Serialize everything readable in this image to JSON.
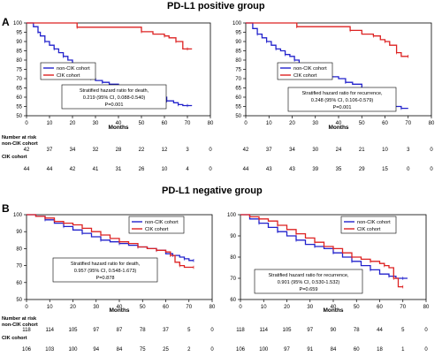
{
  "groups": [
    {
      "title": "PD-L1 positive group",
      "letter": "A"
    },
    {
      "title": "PD-L1 negative group",
      "letter": "B"
    }
  ],
  "risk_header": {
    "line1": "Number at risk",
    "line2": "non-CIK cohort",
    "cik": "CIK cohort"
  },
  "colors": {
    "non_cik": "#2222cc",
    "cik": "#dd2222"
  },
  "chart_data": [
    {
      "type": "line",
      "panel": "A-left",
      "xlabel": "Months",
      "xlim": [
        0,
        80
      ],
      "ylim": [
        50,
        100
      ],
      "xticks": [
        0,
        10,
        20,
        30,
        40,
        50,
        60,
        70,
        80
      ],
      "yticks": [
        50,
        55,
        60,
        65,
        70,
        75,
        80,
        85,
        90,
        95,
        100
      ],
      "legend": [
        "non-CIK cohort",
        "CIK cohort"
      ],
      "annotation": [
        "Stratified hazard ratio for death,",
        "0.219 (95% CI, 0.088-0.540)",
        "P=0.001"
      ],
      "series": [
        {
          "name": "non-CIK cohort",
          "color": "#2222cc",
          "x": [
            0,
            3,
            5,
            6,
            8,
            10,
            12,
            14,
            16,
            18,
            20,
            22,
            24,
            26,
            28,
            30,
            33,
            36,
            40,
            44,
            48,
            52,
            56,
            59,
            61,
            64,
            66,
            68,
            70,
            72
          ],
          "y": [
            100,
            98,
            95,
            93,
            90,
            88,
            86,
            84,
            82,
            80,
            78,
            76,
            74,
            72,
            70,
            69,
            68,
            67,
            66,
            65,
            64,
            62,
            61,
            60,
            58,
            57,
            56,
            55.5,
            55.5,
            55.5
          ]
        },
        {
          "name": "CIK cohort",
          "color": "#dd2222",
          "x": [
            0,
            20,
            22,
            45,
            50,
            55,
            60,
            62,
            65,
            68,
            70,
            72
          ],
          "y": [
            100,
            100,
            97.7,
            97.7,
            95.3,
            94,
            93,
            92,
            90,
            86,
            86,
            86
          ]
        }
      ],
      "risk_x": [
        0,
        10,
        20,
        30,
        40,
        50,
        60,
        70,
        80
      ],
      "risk_non_cik": [
        "42",
        "37",
        "34",
        "32",
        "28",
        "22",
        "12",
        "3",
        "0"
      ],
      "risk_cik": [
        "44",
        "44",
        "42",
        "41",
        "31",
        "26",
        "10",
        "4",
        "0"
      ]
    },
    {
      "type": "line",
      "panel": "A-right",
      "xlabel": "Months",
      "xlim": [
        0,
        80
      ],
      "ylim": [
        50,
        100
      ],
      "xticks": [
        0,
        10,
        20,
        30,
        40,
        50,
        60,
        70,
        80
      ],
      "yticks": [
        50,
        55,
        60,
        65,
        70,
        75,
        80,
        85,
        90,
        95,
        100
      ],
      "legend": [
        "non-CIK cohort",
        "CIK cohort"
      ],
      "annotation": [
        "Stratified hazard ratio for recurrence,",
        "0.248 (95% CI, 0.106-0.579)",
        "P=0.001"
      ],
      "series": [
        {
          "name": "non-CIK cohort",
          "color": "#2222cc",
          "x": [
            0,
            3,
            5,
            7,
            9,
            11,
            13,
            15,
            17,
            19,
            21,
            23,
            25,
            28,
            31,
            34,
            37,
            40,
            43,
            46,
            50,
            53,
            56,
            58,
            61,
            64,
            67,
            70
          ],
          "y": [
            100,
            97,
            94,
            92,
            90,
            88,
            86,
            85,
            83,
            82,
            80,
            78,
            77,
            75,
            74,
            72,
            71,
            70,
            68,
            67,
            65,
            64,
            62,
            61,
            58,
            55,
            54,
            54
          ]
        },
        {
          "name": "CIK cohort",
          "color": "#dd2222",
          "x": [
            0,
            20,
            22,
            40,
            45,
            50,
            55,
            58,
            60,
            62,
            65,
            67,
            70
          ],
          "y": [
            100,
            100,
            98,
            98,
            96,
            94,
            93,
            91,
            90,
            88,
            84,
            82,
            82
          ]
        }
      ],
      "risk_x": [
        0,
        10,
        20,
        30,
        40,
        50,
        60,
        70,
        80
      ],
      "risk_non_cik": [
        "42",
        "37",
        "34",
        "30",
        "24",
        "21",
        "10",
        "3",
        "0"
      ],
      "risk_cik": [
        "44",
        "43",
        "43",
        "39",
        "35",
        "29",
        "15",
        "0",
        "0"
      ]
    },
    {
      "type": "line",
      "panel": "B-left",
      "xlabel": "Months",
      "xlim": [
        0,
        80
      ],
      "ylim": [
        50,
        100
      ],
      "xticks": [
        0,
        10,
        20,
        30,
        40,
        50,
        60,
        70,
        80
      ],
      "yticks": [
        50,
        60,
        70,
        80,
        90,
        100
      ],
      "legend": [
        "non-CIK cohort",
        "CIK cohort"
      ],
      "annotation": [
        "Stratified hazard ratio for death,",
        "0.957 (95% CI, 0.548-1.673)",
        "P=0.878"
      ],
      "series": [
        {
          "name": "non-CIK cohort",
          "color": "#2222cc",
          "x": [
            0,
            4,
            8,
            12,
            16,
            20,
            24,
            28,
            32,
            36,
            40,
            44,
            48,
            52,
            56,
            60,
            63,
            66,
            68,
            70,
            72
          ],
          "y": [
            100,
            99,
            97,
            95,
            93,
            91,
            89,
            87,
            85,
            84,
            83,
            82,
            81,
            80,
            79,
            77,
            76,
            75,
            74,
            73,
            73
          ]
        },
        {
          "name": "CIK cohort",
          "color": "#dd2222",
          "x": [
            0,
            4,
            8,
            12,
            16,
            20,
            24,
            28,
            32,
            36,
            40,
            44,
            48,
            52,
            56,
            60,
            62,
            64,
            66,
            68,
            72
          ],
          "y": [
            100,
            99,
            98,
            96,
            95,
            94,
            92,
            90,
            88,
            86,
            84,
            83,
            81,
            80,
            79,
            78,
            76,
            72,
            70,
            69,
            69
          ]
        }
      ],
      "risk_x": [
        0,
        10,
        20,
        30,
        40,
        50,
        60,
        70,
        80
      ],
      "risk_non_cik": [
        "118",
        "114",
        "105",
        "97",
        "87",
        "78",
        "37",
        "5",
        "0"
      ],
      "risk_cik": [
        "106",
        "103",
        "100",
        "94",
        "84",
        "75",
        "25",
        "2",
        "0"
      ]
    },
    {
      "type": "line",
      "panel": "B-right",
      "xlabel": "Months",
      "xlim": [
        0,
        80
      ],
      "ylim": [
        60,
        100
      ],
      "xticks": [
        0,
        10,
        20,
        30,
        40,
        50,
        60,
        70,
        80
      ],
      "yticks": [
        60,
        70,
        80,
        90,
        100
      ],
      "legend": [
        "non-CIK cohort",
        "CIK cohort"
      ],
      "annotation": [
        "Stratified hazard ratio for recurrence,",
        "0.901 (95% CI, 0.530-1.532)",
        "P=0.659"
      ],
      "series": [
        {
          "name": "non-CIK cohort",
          "color": "#2222cc",
          "x": [
            0,
            4,
            8,
            12,
            16,
            20,
            24,
            28,
            32,
            36,
            40,
            44,
            48,
            52,
            56,
            60,
            64,
            67,
            70,
            72
          ],
          "y": [
            100,
            98,
            96,
            94,
            92,
            90,
            88,
            86,
            85,
            84,
            82,
            80,
            78,
            76,
            74,
            72,
            71,
            70,
            70,
            70
          ]
        },
        {
          "name": "CIK cohort",
          "color": "#dd2222",
          "x": [
            0,
            4,
            8,
            12,
            16,
            20,
            24,
            28,
            32,
            36,
            40,
            44,
            48,
            52,
            56,
            60,
            62,
            64,
            66,
            68,
            70
          ],
          "y": [
            100,
            99,
            98,
            97,
            95,
            93,
            91,
            89,
            87,
            85,
            84,
            82,
            80,
            79,
            78,
            77,
            76,
            75,
            70,
            66,
            66
          ]
        }
      ],
      "risk_x": [
        0,
        10,
        20,
        30,
        40,
        50,
        60,
        70,
        80
      ],
      "risk_non_cik": [
        "118",
        "114",
        "105",
        "97",
        "90",
        "78",
        "44",
        "5",
        "0"
      ],
      "risk_cik": [
        "106",
        "100",
        "97",
        "91",
        "84",
        "60",
        "18",
        "1",
        "0"
      ]
    }
  ]
}
